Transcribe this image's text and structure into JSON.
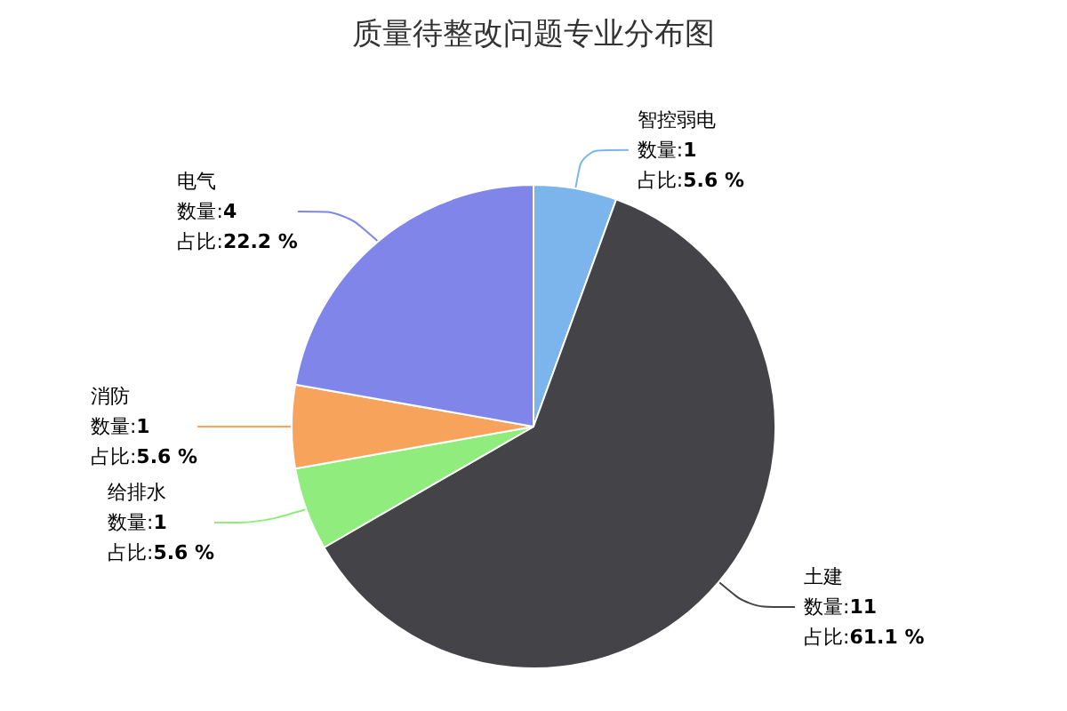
{
  "chart_data": {
    "type": "pie",
    "title": "质量待整改问题专业分布图",
    "categories": [
      "智控弱电",
      "土建",
      "给排水",
      "消防",
      "电气"
    ],
    "values": [
      1,
      11,
      1,
      1,
      4
    ],
    "colors": [
      "#7cb5ec",
      "#434348",
      "#90ed7d",
      "#f7a35c",
      "#8085e9"
    ],
    "value_labels": [
      "数量:1\n占比:5.6 %",
      "数量:11\n占比:61.1 %",
      "数量:1\n占比:5.6 %",
      "数量:1\n占比:5.6 %",
      "数量:4\n占比:22.2 %"
    ],
    "legend": false
  }
}
